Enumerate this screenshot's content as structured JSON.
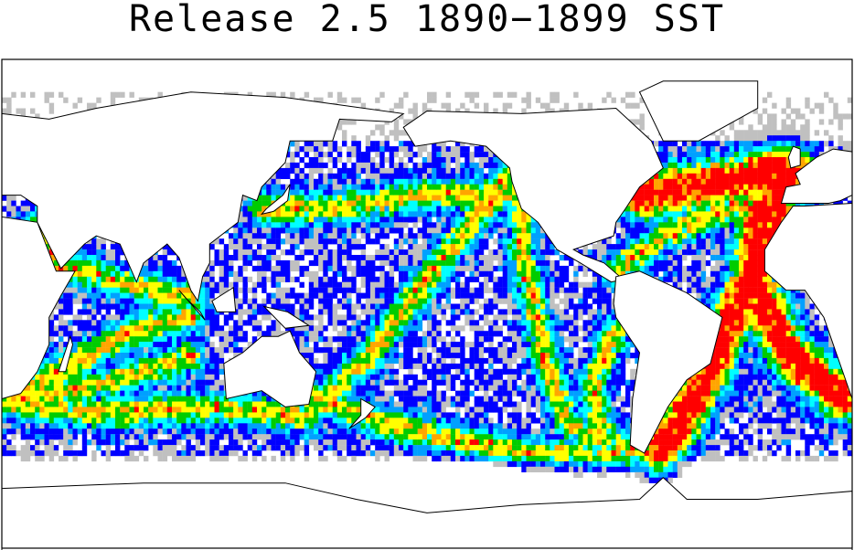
{
  "title": "Release 2.5 1890−1899 SST"
}
